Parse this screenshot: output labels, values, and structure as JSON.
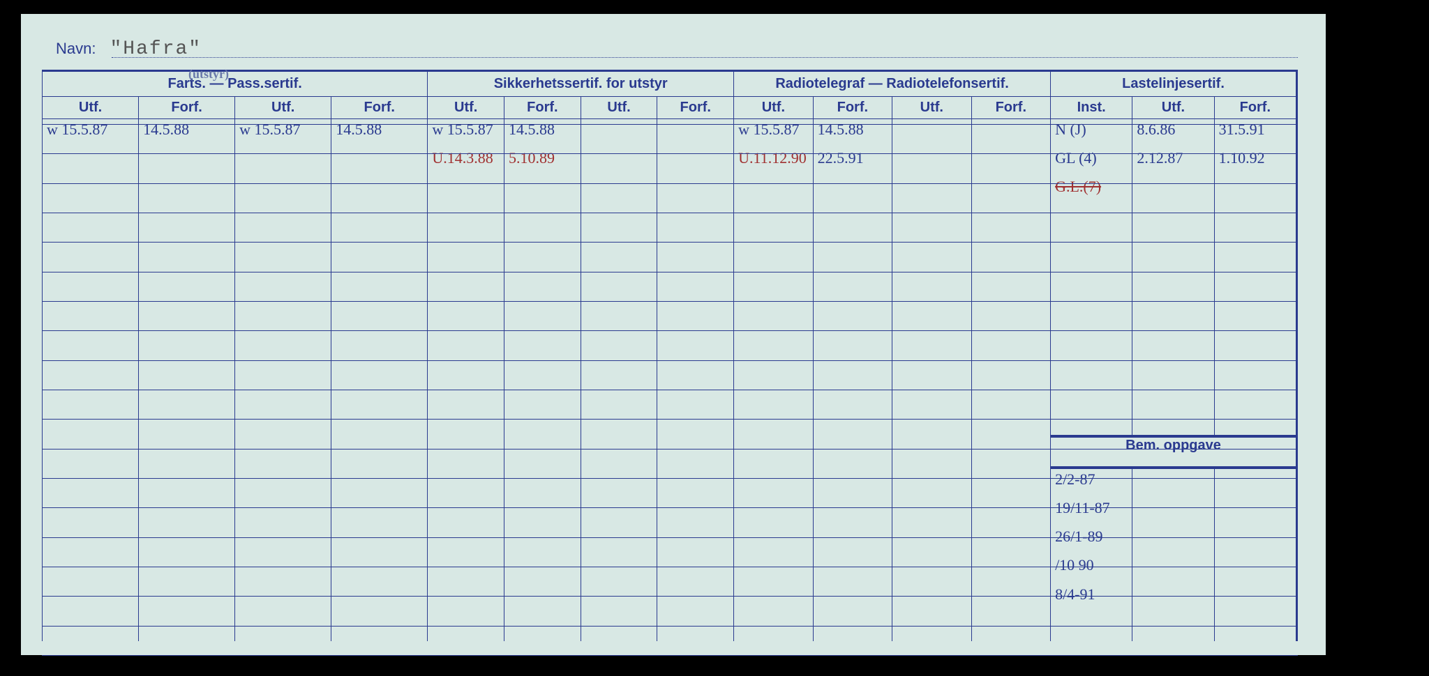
{
  "colors": {
    "paper": "#d8e8e4",
    "ink": "#2a3a8f",
    "hand_blue": "#2a3a8f",
    "hand_red": "#a03030",
    "typed": "#555555",
    "bg": "#000000"
  },
  "navn": {
    "label": "Navn:",
    "value": "\"Hafra\""
  },
  "group_headers": [
    "Farts. — Pass.sertif.",
    "Sikkerhetssertif. for utstyr",
    "Radiotelegraf — Radiotelefonsertif.",
    "Lastelinjesertif."
  ],
  "annotation_over_pass": "(utstyr)",
  "sub_headers": {
    "utf": "Utf.",
    "forf": "Forf.",
    "inst": "Inst."
  },
  "columns": [
    "farts1_utf",
    "farts1_forf",
    "farts2_utf",
    "farts2_forf",
    "sikk1_utf",
    "sikk1_forf",
    "sikk2_utf",
    "sikk2_forf",
    "radio1_utf",
    "radio1_forf",
    "radio2_utf",
    "radio2_forf",
    "laste_inst",
    "laste_utf",
    "laste_forf"
  ],
  "col_widths_pct": [
    7.3,
    7.3,
    7.3,
    7.3,
    5.8,
    5.8,
    5.8,
    5.8,
    6,
    6,
    6,
    6,
    6.2,
    6.2,
    6.2
  ],
  "data_rows": [
    {
      "farts1_utf": {
        "t": "w 15.5.87"
      },
      "farts1_forf": {
        "t": "14.5.88"
      },
      "farts2_utf": {
        "t": "w 15.5.87"
      },
      "farts2_forf": {
        "t": "14.5.88"
      },
      "sikk1_utf": {
        "t": "w 15.5.87"
      },
      "sikk1_forf": {
        "t": "14.5.88"
      },
      "radio1_utf": {
        "t": "w 15.5.87"
      },
      "radio1_forf": {
        "t": "14.5.88"
      },
      "laste_inst": {
        "t": "N (J)"
      },
      "laste_utf": {
        "t": "8.6.86"
      },
      "laste_forf": {
        "t": "31.5.91"
      }
    },
    {
      "sikk1_utf": {
        "t": "U.14.3.88",
        "c": "red"
      },
      "sikk1_forf": {
        "t": "5.10.89",
        "c": "red"
      },
      "radio1_utf": {
        "t": "U.11.12.90",
        "c": "red"
      },
      "radio1_forf": {
        "t": "22.5.91"
      },
      "laste_inst": {
        "t": "GL (4)"
      },
      "laste_utf": {
        "t": "2.12.87"
      },
      "laste_forf": {
        "t": "1.10.92"
      }
    },
    {
      "laste_inst": {
        "t": "G.L.(7)",
        "c": "red",
        "strike": true
      }
    }
  ],
  "bem": {
    "header": "Bem. oppgave",
    "entries": [
      "2/2-87",
      "19/11-87",
      "26/1-89",
      "  /10 90",
      "8/4-91"
    ]
  },
  "layout": {
    "body_row_count": 18,
    "bem_header_at_row": 11,
    "hole_count": 9
  }
}
